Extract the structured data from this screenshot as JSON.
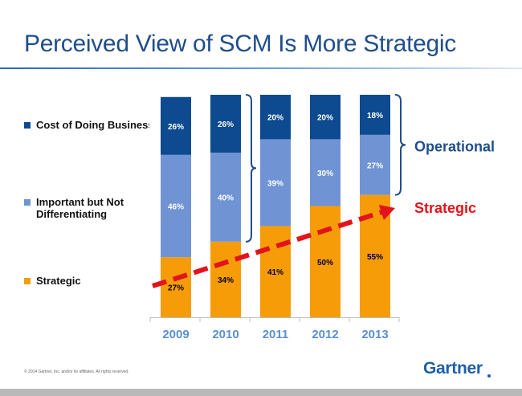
{
  "slide": {
    "title": "Perceived View of SCM Is More Strategic",
    "footer": "© 2014 Gartner, Inc. and/or its affiliates. All rights reserved.",
    "logo_text": "Gartner"
  },
  "legend": [
    {
      "label": "Cost of Doing Business",
      "color": "#0d4a8f"
    },
    {
      "label": "Important but Not Differentiating",
      "color": "#7094d3"
    },
    {
      "label": "Strategic",
      "color": "#f79c09"
    }
  ],
  "chart_data": {
    "type": "bar",
    "stacked": true,
    "categories": [
      "2009",
      "2010",
      "2011",
      "2012",
      "2013"
    ],
    "series": [
      {
        "name": "Strategic",
        "values": [
          27,
          34,
          41,
          50,
          55
        ],
        "color": "#f79c09"
      },
      {
        "name": "Important but Not Differentiating",
        "values": [
          46,
          40,
          39,
          30,
          27
        ],
        "color": "#7094d3"
      },
      {
        "name": "Cost of Doing Business",
        "values": [
          26,
          26,
          20,
          20,
          18
        ],
        "color": "#0d4a8f"
      }
    ],
    "ylim": [
      0,
      100
    ],
    "value_suffix": "%",
    "annotations": [
      {
        "text": "Operational",
        "color": "#1f4e8c"
      },
      {
        "text": "Strategic",
        "color": "#e3131b"
      }
    ],
    "grid": false,
    "legend_position": "left"
  }
}
